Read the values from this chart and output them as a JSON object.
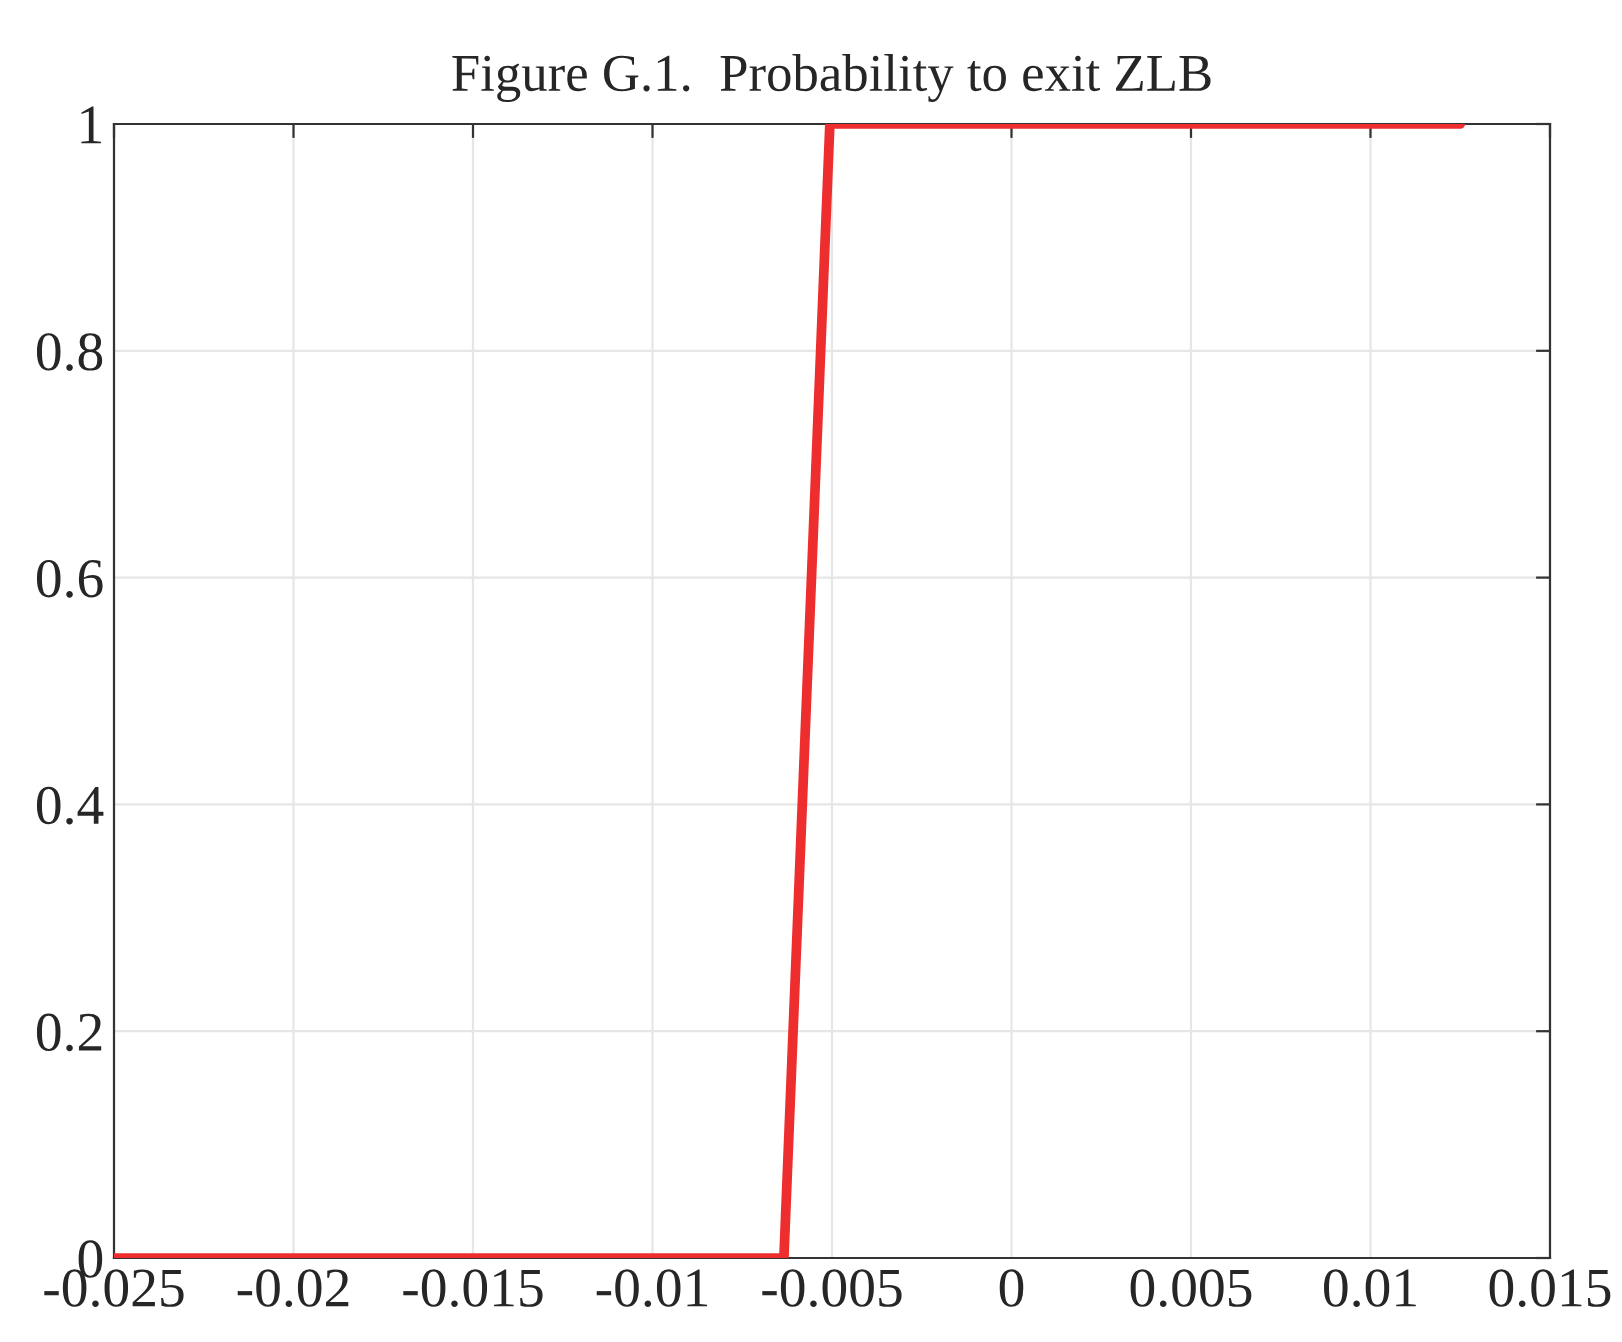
{
  "chart_data": {
    "type": "line",
    "title": "Figure G.1.  Probability to exit ZLB",
    "series": [
      {
        "color": "#ee2e2e",
        "x": [
          -0.025,
          -0.00634,
          -0.00506,
          0.0125
        ],
        "values": [
          0,
          0,
          1,
          1
        ]
      }
    ],
    "xlim": [
      -0.025,
      0.015
    ],
    "ylim": [
      0,
      1
    ],
    "xticks": [
      -0.025,
      -0.02,
      -0.015,
      -0.01,
      -0.005,
      0,
      0.005,
      0.01,
      0.015
    ],
    "yticks": [
      0,
      0.2,
      0.4,
      0.6,
      0.8,
      1
    ],
    "grid": true,
    "line_style": "solid"
  }
}
